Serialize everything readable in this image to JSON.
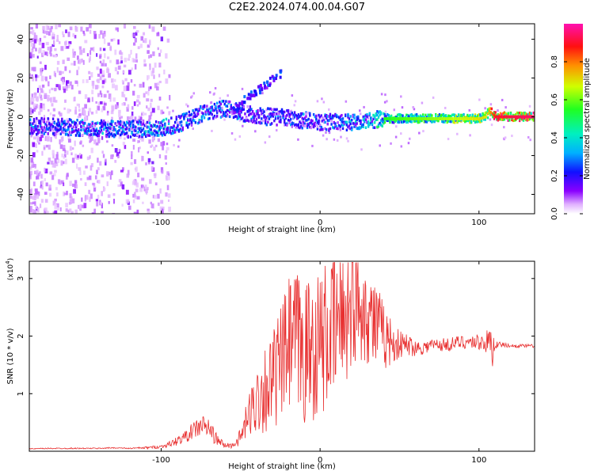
{
  "title": "C2E2.2024.074.00.04.G07",
  "chart_data": [
    {
      "type": "heatmap",
      "name": "spectrogram",
      "xlabel": "Height of straight line (km)",
      "ylabel": "Frequency (Hz)",
      "xlim": [
        -183,
        135
      ],
      "ylim": [
        -50,
        48
      ],
      "xticks": [
        -100,
        0,
        100
      ],
      "yticks": [
        -40,
        -20,
        0,
        20,
        40
      ],
      "colorbar": {
        "label": "Normalized spectral amplitude",
        "range": [
          0,
          1
        ],
        "ticks": [
          0.0,
          0.2,
          0.4,
          0.6,
          0.8
        ],
        "tick_labels": [
          "0.0",
          "0.2",
          "0.4",
          "0.6",
          "0.8"
        ]
      },
      "ridge": {
        "x": [
          -180,
          -160,
          -140,
          -120,
          -100,
          -90,
          -80,
          -70,
          -60,
          -50,
          -40,
          -30,
          -20,
          -10,
          0,
          10,
          20,
          30,
          40,
          60,
          80,
          100,
          104,
          106,
          110,
          135
        ],
        "y": [
          -5,
          -5.5,
          -6,
          -6.5,
          -6,
          -4,
          0,
          3,
          4,
          2,
          0,
          0,
          -1,
          -2,
          -3,
          -3,
          -3,
          -2,
          -1,
          -1,
          -1,
          -1,
          0,
          3,
          0,
          0
        ],
        "amplitude": [
          0.3,
          0.35,
          0.35,
          0.35,
          0.4,
          0.35,
          0.35,
          0.35,
          0.35,
          0.3,
          0.3,
          0.3,
          0.3,
          0.3,
          0.3,
          0.35,
          0.4,
          0.45,
          0.55,
          0.6,
          0.65,
          0.7,
          0.7,
          0.75,
          0.9,
          0.95
        ]
      },
      "branch": {
        "x": [
          -55,
          -50,
          -45,
          -40,
          -35,
          -30,
          -25
        ],
        "y": [
          4,
          8,
          12,
          14,
          17,
          20,
          23
        ]
      },
      "noise_region_x": [
        -183,
        -95
      ]
    },
    {
      "type": "line",
      "name": "snr",
      "xlabel": "Height of straight line (km)",
      "ylabel": "SNR (10 * v/v)",
      "y_multiplier": "(x10",
      "y_multiplier_exp": "4",
      "y_multiplier_close": ")",
      "xlim": [
        -183,
        135
      ],
      "ylim": [
        0,
        3.3
      ],
      "xticks": [
        -100,
        0,
        100
      ],
      "yticks": [
        1,
        2,
        3
      ],
      "color": "#e83030",
      "series": [
        {
          "x": [
            -183,
            -170,
            -160,
            -150,
            -140,
            -130,
            -120,
            -110,
            -100,
            -95,
            -90,
            -85,
            -80,
            -75,
            -70,
            -65,
            -60,
            -55,
            -50,
            -45,
            -40,
            -35,
            -30,
            -25,
            -20,
            -15,
            -10,
            -5,
            0,
            5,
            10,
            15,
            20,
            25,
            30,
            35,
            40,
            45,
            50,
            55,
            60,
            65,
            70,
            75,
            80,
            85,
            90,
            95,
            100,
            105,
            108,
            110,
            115,
            120,
            125,
            130,
            135
          ],
          "y": [
            0.04,
            0.05,
            0.05,
            0.05,
            0.05,
            0.06,
            0.05,
            0.06,
            0.08,
            0.12,
            0.18,
            0.25,
            0.35,
            0.45,
            0.4,
            0.2,
            0.1,
            0.1,
            0.25,
            0.6,
            0.9,
            1.1,
            1.2,
            1.5,
            1.8,
            1.9,
            1.7,
            1.8,
            1.9,
            2.0,
            2.2,
            2.4,
            2.6,
            2.6,
            2.4,
            2.2,
            2.0,
            1.9,
            1.85,
            1.85,
            1.8,
            1.8,
            1.85,
            1.85,
            1.85,
            1.88,
            1.9,
            1.9,
            1.9,
            1.9,
            1.8,
            1.85,
            1.85,
            1.83,
            1.83,
            1.83,
            1.83
          ],
          "noise": [
            0.01,
            0.01,
            0.01,
            0.01,
            0.01,
            0.01,
            0.01,
            0.02,
            0.03,
            0.05,
            0.08,
            0.1,
            0.15,
            0.2,
            0.2,
            0.1,
            0.05,
            0.05,
            0.15,
            0.4,
            0.6,
            0.8,
            0.9,
            1.0,
            1.2,
            1.3,
            1.3,
            1.3,
            1.3,
            1.3,
            1.3,
            1.3,
            1.2,
            1.0,
            0.9,
            0.8,
            0.6,
            0.4,
            0.25,
            0.2,
            0.15,
            0.12,
            0.12,
            0.12,
            0.12,
            0.12,
            0.12,
            0.12,
            0.15,
            0.2,
            0.5,
            0.08,
            0.04,
            0.03,
            0.03,
            0.03,
            0.03
          ]
        }
      ]
    }
  ]
}
